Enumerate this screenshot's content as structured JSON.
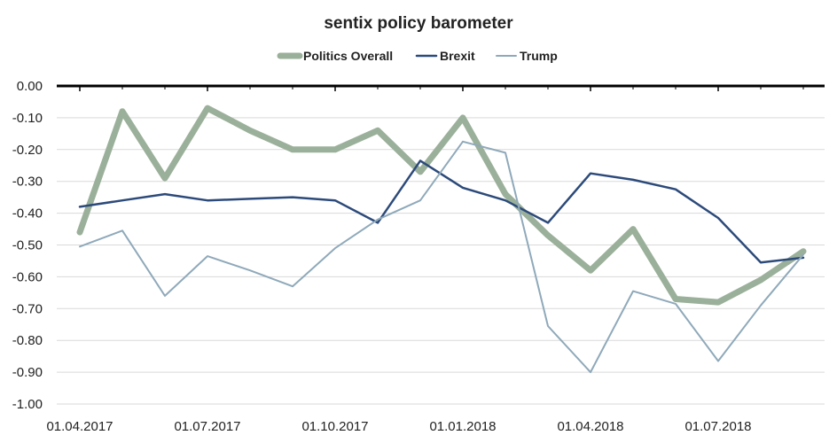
{
  "chart_data": {
    "type": "line",
    "title": "sentix policy barometer",
    "xlabel": "",
    "ylabel": "",
    "ylim": [
      -1.0,
      0.0
    ],
    "y_ticks": [
      0.0,
      -0.1,
      -0.2,
      -0.3,
      -0.4,
      -0.5,
      -0.6,
      -0.7,
      -0.8,
      -0.9,
      -1.0
    ],
    "y_tick_labels": [
      "0.00",
      "-0.10",
      "-0.20",
      "-0.30",
      "-0.40",
      "-0.50",
      "-0.60",
      "-0.70",
      "-0.80",
      "-0.90",
      "-1.00"
    ],
    "x_tick_labels": [
      "01.04.2017",
      "01.07.2017",
      "01.10.2017",
      "01.01.2018",
      "01.04.2018",
      "01.07.2018"
    ],
    "x": [
      "2017-04",
      "2017-05",
      "2017-06",
      "2017-07",
      "2017-08",
      "2017-09",
      "2017-10",
      "2017-11",
      "2017-12",
      "2018-01",
      "2018-02",
      "2018-03",
      "2018-04",
      "2018-05",
      "2018-06",
      "2018-07",
      "2018-08",
      "2018-09"
    ],
    "legend_position": "top",
    "grid": "horizontal",
    "series": [
      {
        "name": "Politics Overall",
        "color": "#9bb09a",
        "values": [
          -0.46,
          -0.08,
          -0.29,
          -0.07,
          -0.14,
          -0.2,
          -0.2,
          -0.14,
          -0.27,
          -0.1,
          -0.34,
          -0.47,
          -0.58,
          -0.45,
          -0.67,
          -0.68,
          -0.61,
          -0.52
        ]
      },
      {
        "name": "Brexit",
        "color": "#2c4a7a",
        "values": [
          -0.38,
          -0.36,
          -0.34,
          -0.36,
          -0.355,
          -0.35,
          -0.36,
          -0.43,
          -0.235,
          -0.32,
          -0.36,
          -0.43,
          -0.275,
          -0.295,
          -0.325,
          -0.415,
          -0.555,
          -0.54
        ]
      },
      {
        "name": "Trump",
        "color": "#8fa9ba",
        "values": [
          -0.505,
          -0.455,
          -0.66,
          -0.535,
          -0.58,
          -0.63,
          -0.51,
          -0.42,
          -0.36,
          -0.175,
          -0.21,
          -0.755,
          -0.9,
          -0.645,
          -0.685,
          -0.865,
          -0.69,
          -0.53
        ]
      }
    ]
  }
}
